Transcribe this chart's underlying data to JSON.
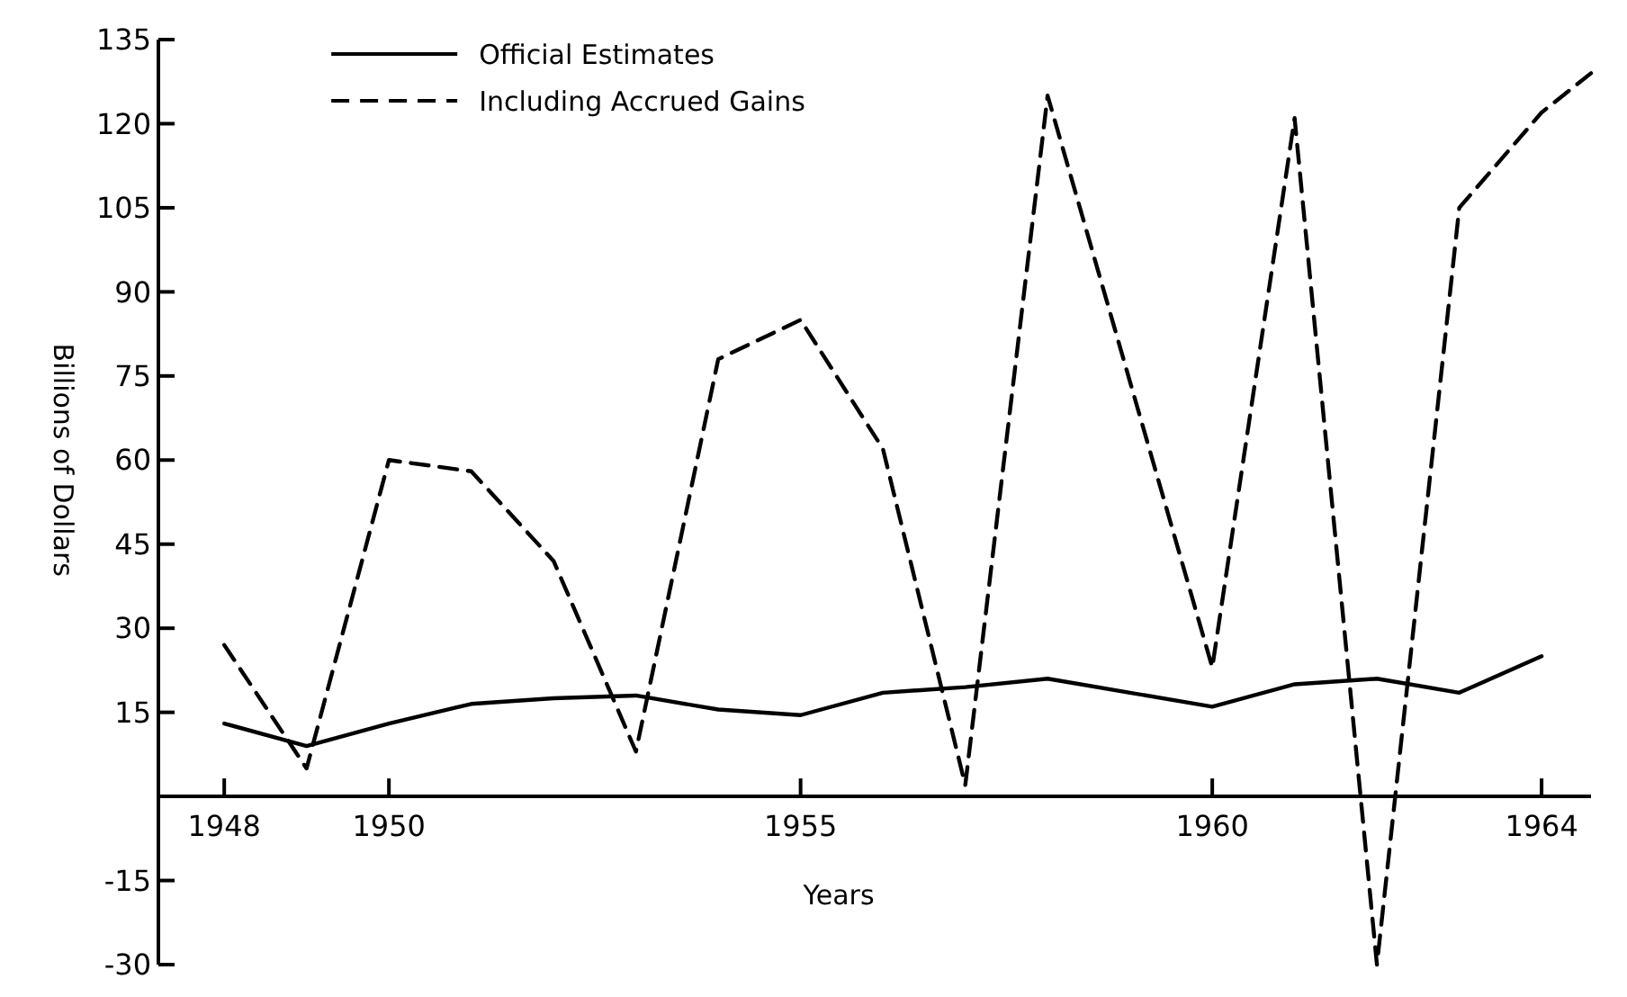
{
  "chart_data": {
    "type": "line",
    "xlabel": "Years",
    "ylabel": "Billions of Dollars",
    "x": [
      1948,
      1949,
      1950,
      1951,
      1952,
      1953,
      1954,
      1955,
      1956,
      1957,
      1958,
      1959,
      1960,
      1961,
      1962,
      1963,
      1964
    ],
    "series": [
      {
        "name": "Official Estimates",
        "color": "#000000",
        "line_style": "solid",
        "values": [
          13,
          9,
          13,
          16.5,
          17.5,
          18,
          15.5,
          14.5,
          18.5,
          19.5,
          21,
          18.5,
          16,
          20,
          21,
          18.5,
          25
        ]
      },
      {
        "name": "Including Accrued Gains",
        "color": "#000000",
        "line_style": "dashed",
        "x": [
          1948,
          1949,
          1950,
          1951,
          1952,
          1953,
          1954,
          1955,
          1956,
          1957,
          1958,
          1959,
          1960,
          1961,
          1962,
          1963,
          1964,
          1964.6
        ],
        "values": [
          27,
          5,
          60,
          58,
          42,
          8,
          78,
          85,
          62,
          2,
          125,
          74,
          23,
          121,
          -30,
          105,
          122,
          129
        ]
      }
    ],
    "xlim": [
      1947.2,
      1964.6
    ],
    "xticks": [
      1948,
      1950,
      1955,
      1960,
      1964
    ],
    "ylim": [
      -30,
      135
    ],
    "yticks": [
      -30,
      -15,
      15,
      30,
      45,
      60,
      75,
      90,
      105,
      120,
      135
    ],
    "grid": false,
    "legend": "top left",
    "marker": "none"
  }
}
